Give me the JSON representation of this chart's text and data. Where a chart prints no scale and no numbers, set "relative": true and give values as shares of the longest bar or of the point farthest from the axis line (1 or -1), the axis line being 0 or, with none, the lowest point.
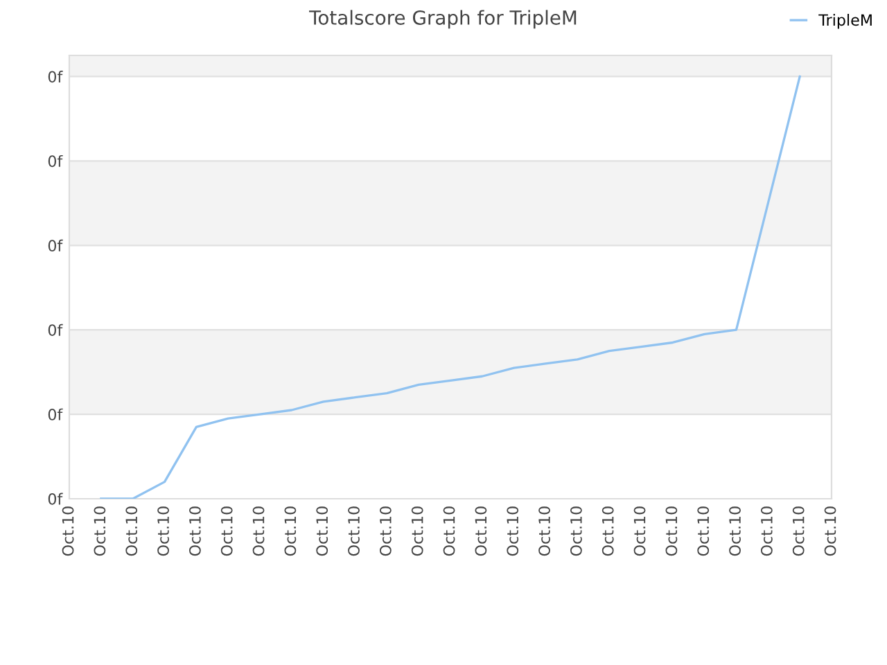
{
  "chart_data": {
    "type": "line",
    "title": "Totalscore Graph for TripleM",
    "categories": [
      "Oct.10",
      "Oct.10",
      "Oct.10",
      "Oct.10",
      "Oct.10",
      "Oct.10",
      "Oct.10",
      "Oct.10",
      "Oct.10",
      "Oct.10",
      "Oct.10",
      "Oct.10",
      "Oct.10",
      "Oct.10",
      "Oct.10",
      "Oct.10",
      "Oct.10",
      "Oct.10",
      "Oct.10",
      "Oct.10",
      "Oct.10",
      "Oct.10",
      "Oct.10",
      "Oct.10",
      "Oct.10"
    ],
    "series": [
      {
        "name": "TripleM",
        "color": "#90c2f0",
        "values": [
          null,
          0,
          0,
          0.04,
          0.17,
          0.19,
          0.2,
          0.21,
          0.23,
          0.24,
          0.25,
          0.27,
          0.28,
          0.29,
          0.31,
          0.32,
          0.33,
          0.35,
          0.36,
          0.37,
          0.39,
          0.4,
          0.7,
          1.0,
          null
        ]
      }
    ],
    "relative": true,
    "annotations": [
      "0f",
      "0f",
      "0f",
      "0f",
      "0f",
      "0f"
    ],
    "grid": "y",
    "legend": "top right",
    "line_style": "solid"
  }
}
